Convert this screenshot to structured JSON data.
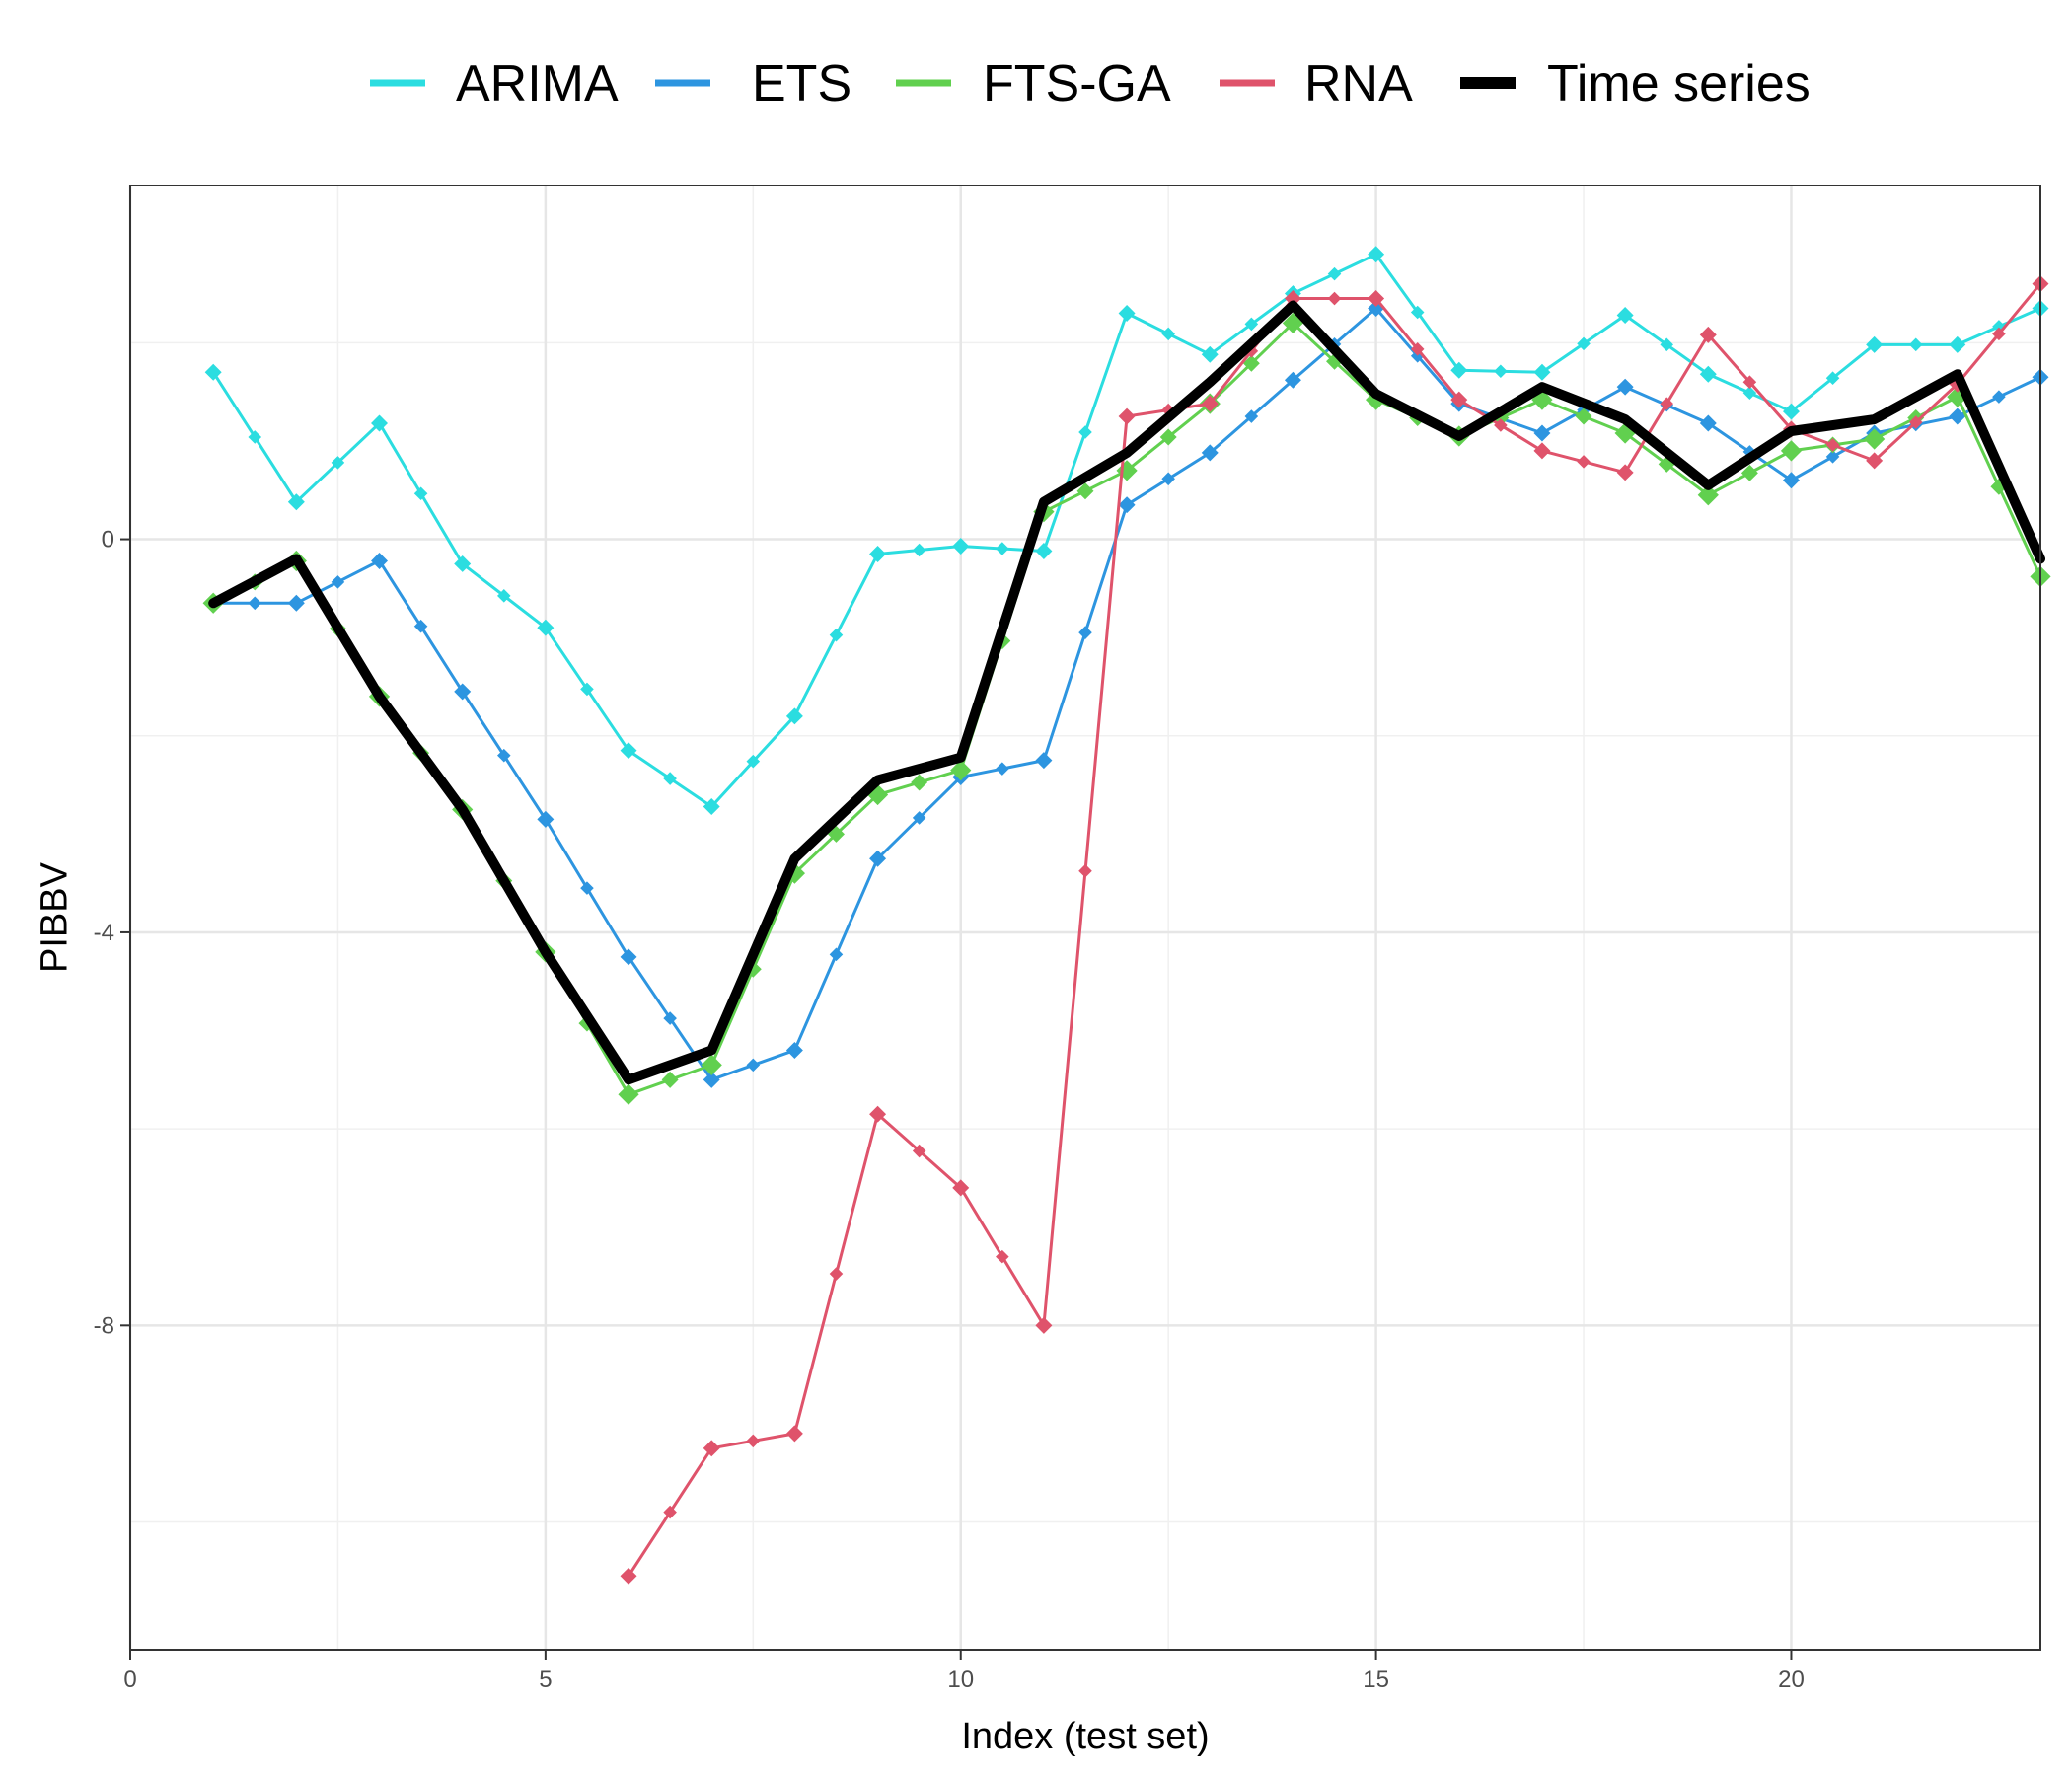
{
  "chart_data": {
    "type": "line",
    "xlabel": "Index (test set)",
    "ylabel": "PIBBV",
    "xlim": [
      0,
      23
    ],
    "ylim": [
      -11.3,
      3.6
    ],
    "xticks": [
      0,
      5,
      10,
      15,
      20
    ],
    "yticks": [
      0,
      -4,
      -8
    ],
    "grid": true,
    "legend_position": "top",
    "series": [
      {
        "name": "ARIMA",
        "color": "#2BDDE0",
        "x": [
          1,
          2,
          3,
          4,
          5,
          6,
          7,
          8,
          9,
          10,
          11,
          12,
          13,
          14,
          15,
          16,
          17,
          18,
          19,
          20,
          21,
          22,
          23
        ],
        "values": [
          1.7,
          0.38,
          1.18,
          -0.25,
          -0.9,
          -2.15,
          -2.72,
          -1.8,
          -0.15,
          -0.07,
          -0.12,
          2.3,
          1.88,
          2.5,
          2.9,
          1.72,
          1.7,
          2.28,
          1.68,
          1.3,
          1.98,
          1.98,
          2.35
        ]
      },
      {
        "name": "ETS",
        "color": "#2D95E0",
        "x": [
          1,
          2,
          3,
          4,
          5,
          6,
          7,
          8,
          9,
          10,
          11,
          12,
          13,
          14,
          15,
          16,
          17,
          18,
          19,
          20,
          21,
          22,
          23
        ],
        "values": [
          -0.65,
          -0.65,
          -0.22,
          -1.55,
          -2.85,
          -4.25,
          -5.5,
          -5.2,
          -3.25,
          -2.42,
          -2.25,
          0.35,
          0.88,
          1.62,
          2.35,
          1.38,
          1.08,
          1.55,
          1.18,
          0.6,
          1.08,
          1.25,
          1.65
        ]
      },
      {
        "name": "FTS-GA",
        "color": "#61D04F",
        "x": [
          1,
          2,
          3,
          4,
          5,
          6,
          7,
          8,
          9,
          10,
          11,
          12,
          13,
          14,
          15,
          16,
          17,
          18,
          19,
          20,
          21,
          22,
          23
        ],
        "values": [
          -0.65,
          -0.22,
          -1.6,
          -2.75,
          -4.2,
          -5.65,
          -5.35,
          -3.4,
          -2.6,
          -2.35,
          0.28,
          0.7,
          1.38,
          2.2,
          1.42,
          1.05,
          1.42,
          1.08,
          0.45,
          0.9,
          1.02,
          1.45,
          -0.38
        ]
      },
      {
        "name": "RNA",
        "color": "#DF536B",
        "x": [
          6,
          7,
          8,
          9,
          10,
          11,
          12,
          13,
          14,
          15,
          16,
          17,
          18,
          19,
          20,
          21,
          22,
          23
        ],
        "values": [
          -10.55,
          -9.25,
          -9.1,
          -5.85,
          -6.6,
          -8.0,
          1.25,
          1.38,
          2.45,
          2.45,
          1.42,
          0.9,
          0.68,
          2.08,
          1.12,
          0.8,
          1.58,
          2.6
        ]
      },
      {
        "name": "Time series",
        "color": "#000000",
        "x": [
          1,
          2,
          3,
          4,
          5,
          6,
          7,
          8,
          9,
          10,
          11,
          12,
          13,
          14,
          15,
          16,
          17,
          18,
          19,
          20,
          21,
          22,
          23
        ],
        "values": [
          -0.65,
          -0.2,
          -1.6,
          -2.75,
          -4.2,
          -5.5,
          -5.2,
          -3.25,
          -2.45,
          -2.22,
          0.38,
          0.88,
          1.6,
          2.38,
          1.48,
          1.05,
          1.55,
          1.22,
          0.55,
          1.1,
          1.22,
          1.68,
          -0.2
        ]
      }
    ]
  }
}
